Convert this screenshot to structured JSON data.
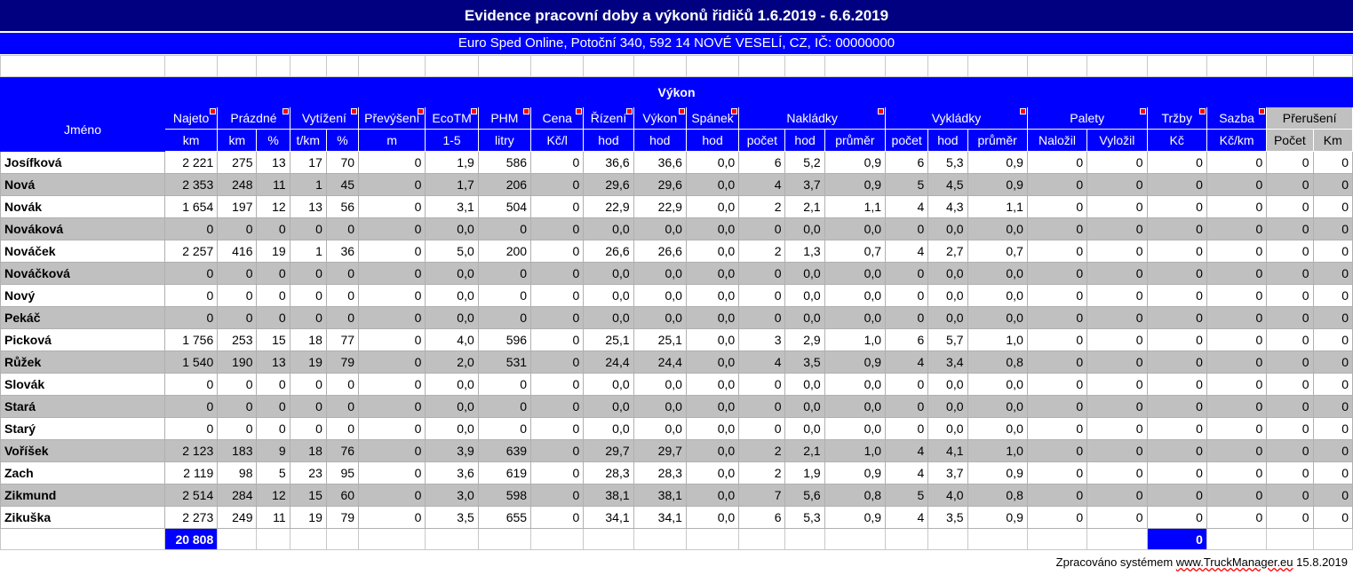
{
  "title": "Evidence pracovní doby a výkonů řidičů 1.6.2019 - 6.6.2019",
  "subtitle": "Euro Sped Online, Potoční 340, 592 14 NOVÉ VESELÍ, CZ, IČ: 00000000",
  "section_label": "Výkon",
  "name_header": "Jméno",
  "groups": [
    "Najeto",
    "Prázdné",
    "Vytížení",
    "Převýšení",
    "EcoTM",
    "PHM",
    "Cena",
    "Řízení",
    "Výkon",
    "Spánek",
    "Nakládky",
    "Vykládky",
    "Palety",
    "Tržby",
    "Sazba",
    "Přerušení"
  ],
  "units": [
    "km",
    "km",
    "%",
    "t/km",
    "%",
    "m",
    "1-5",
    "litry",
    "Kč/l",
    "hod",
    "hod",
    "hod",
    "počet",
    "hod",
    "průměr",
    "počet",
    "hod",
    "průměr",
    "Naložil",
    "Vyložil",
    "Kč",
    "Kč/km",
    "Počet",
    "Km"
  ],
  "rows": [
    {
      "name": "Josífková",
      "v": [
        "2 221",
        "275",
        "13",
        "17",
        "70",
        "0",
        "1,9",
        "586",
        "0",
        "36,6",
        "36,6",
        "0,0",
        "6",
        "5,2",
        "0,9",
        "6",
        "5,3",
        "0,9",
        "0",
        "0",
        "0",
        "0",
        "0",
        "0"
      ]
    },
    {
      "name": "Nová",
      "v": [
        "2 353",
        "248",
        "11",
        "1",
        "45",
        "0",
        "1,7",
        "206",
        "0",
        "29,6",
        "29,6",
        "0,0",
        "4",
        "3,7",
        "0,9",
        "5",
        "4,5",
        "0,9",
        "0",
        "0",
        "0",
        "0",
        "0",
        "0"
      ]
    },
    {
      "name": "Novák",
      "v": [
        "1 654",
        "197",
        "12",
        "13",
        "56",
        "0",
        "3,1",
        "504",
        "0",
        "22,9",
        "22,9",
        "0,0",
        "2",
        "2,1",
        "1,1",
        "4",
        "4,3",
        "1,1",
        "0",
        "0",
        "0",
        "0",
        "0",
        "0"
      ]
    },
    {
      "name": "Nováková",
      "v": [
        "0",
        "0",
        "0",
        "0",
        "0",
        "0",
        "0,0",
        "0",
        "0",
        "0,0",
        "0,0",
        "0,0",
        "0",
        "0,0",
        "0,0",
        "0",
        "0,0",
        "0,0",
        "0",
        "0",
        "0",
        "0",
        "0",
        "0"
      ]
    },
    {
      "name": "Nováček",
      "v": [
        "2 257",
        "416",
        "19",
        "1",
        "36",
        "0",
        "5,0",
        "200",
        "0",
        "26,6",
        "26,6",
        "0,0",
        "2",
        "1,3",
        "0,7",
        "4",
        "2,7",
        "0,7",
        "0",
        "0",
        "0",
        "0",
        "0",
        "0"
      ]
    },
    {
      "name": "Nováčková",
      "v": [
        "0",
        "0",
        "0",
        "0",
        "0",
        "0",
        "0,0",
        "0",
        "0",
        "0,0",
        "0,0",
        "0,0",
        "0",
        "0,0",
        "0,0",
        "0",
        "0,0",
        "0,0",
        "0",
        "0",
        "0",
        "0",
        "0",
        "0"
      ]
    },
    {
      "name": "Nový",
      "v": [
        "0",
        "0",
        "0",
        "0",
        "0",
        "0",
        "0,0",
        "0",
        "0",
        "0,0",
        "0,0",
        "0,0",
        "0",
        "0,0",
        "0,0",
        "0",
        "0,0",
        "0,0",
        "0",
        "0",
        "0",
        "0",
        "0",
        "0"
      ]
    },
    {
      "name": "Pekáč",
      "v": [
        "0",
        "0",
        "0",
        "0",
        "0",
        "0",
        "0,0",
        "0",
        "0",
        "0,0",
        "0,0",
        "0,0",
        "0",
        "0,0",
        "0,0",
        "0",
        "0,0",
        "0,0",
        "0",
        "0",
        "0",
        "0",
        "0",
        "0"
      ]
    },
    {
      "name": "Picková",
      "v": [
        "1 756",
        "253",
        "15",
        "18",
        "77",
        "0",
        "4,0",
        "596",
        "0",
        "25,1",
        "25,1",
        "0,0",
        "3",
        "2,9",
        "1,0",
        "6",
        "5,7",
        "1,0",
        "0",
        "0",
        "0",
        "0",
        "0",
        "0"
      ]
    },
    {
      "name": "Růžek",
      "v": [
        "1 540",
        "190",
        "13",
        "19",
        "79",
        "0",
        "2,0",
        "531",
        "0",
        "24,4",
        "24,4",
        "0,0",
        "4",
        "3,5",
        "0,9",
        "4",
        "3,4",
        "0,8",
        "0",
        "0",
        "0",
        "0",
        "0",
        "0"
      ]
    },
    {
      "name": "Slovák",
      "v": [
        "0",
        "0",
        "0",
        "0",
        "0",
        "0",
        "0,0",
        "0",
        "0",
        "0,0",
        "0,0",
        "0,0",
        "0",
        "0,0",
        "0,0",
        "0",
        "0,0",
        "0,0",
        "0",
        "0",
        "0",
        "0",
        "0",
        "0"
      ]
    },
    {
      "name": "Stará",
      "v": [
        "0",
        "0",
        "0",
        "0",
        "0",
        "0",
        "0,0",
        "0",
        "0",
        "0,0",
        "0,0",
        "0,0",
        "0",
        "0,0",
        "0,0",
        "0",
        "0,0",
        "0,0",
        "0",
        "0",
        "0",
        "0",
        "0",
        "0"
      ]
    },
    {
      "name": "Starý",
      "v": [
        "0",
        "0",
        "0",
        "0",
        "0",
        "0",
        "0,0",
        "0",
        "0",
        "0,0",
        "0,0",
        "0,0",
        "0",
        "0,0",
        "0,0",
        "0",
        "0,0",
        "0,0",
        "0",
        "0",
        "0",
        "0",
        "0",
        "0"
      ]
    },
    {
      "name": "Voříšek",
      "v": [
        "2 123",
        "183",
        "9",
        "18",
        "76",
        "0",
        "3,9",
        "639",
        "0",
        "29,7",
        "29,7",
        "0,0",
        "2",
        "2,1",
        "1,0",
        "4",
        "4,1",
        "1,0",
        "0",
        "0",
        "0",
        "0",
        "0",
        "0"
      ]
    },
    {
      "name": "Zach",
      "v": [
        "2 119",
        "98",
        "5",
        "23",
        "95",
        "0",
        "3,6",
        "619",
        "0",
        "28,3",
        "28,3",
        "0,0",
        "2",
        "1,9",
        "0,9",
        "4",
        "3,7",
        "0,9",
        "0",
        "0",
        "0",
        "0",
        "0",
        "0"
      ]
    },
    {
      "name": "Zikmund",
      "v": [
        "2 514",
        "284",
        "12",
        "15",
        "60",
        "0",
        "3,0",
        "598",
        "0",
        "38,1",
        "38,1",
        "0,0",
        "7",
        "5,6",
        "0,8",
        "5",
        "4,0",
        "0,8",
        "0",
        "0",
        "0",
        "0",
        "0",
        "0"
      ]
    },
    {
      "name": "Zikuška",
      "v": [
        "2 273",
        "249",
        "11",
        "19",
        "79",
        "0",
        "3,5",
        "655",
        "0",
        "34,1",
        "34,1",
        "0,0",
        "6",
        "5,3",
        "0,9",
        "4",
        "3,5",
        "0,9",
        "0",
        "0",
        "0",
        "0",
        "0",
        "0"
      ]
    }
  ],
  "totals": {
    "najeto": "20 808",
    "trzby": "0"
  },
  "footer": {
    "prefix": "Zpracováno systémem",
    "url": "www.TruckManager.eu",
    "date": "15.8.2019"
  },
  "colors": {
    "title_bg": "#000080",
    "header_bg": "#0000ff",
    "row_alt": "#c0c0c0",
    "marker": "#ff0000"
  }
}
